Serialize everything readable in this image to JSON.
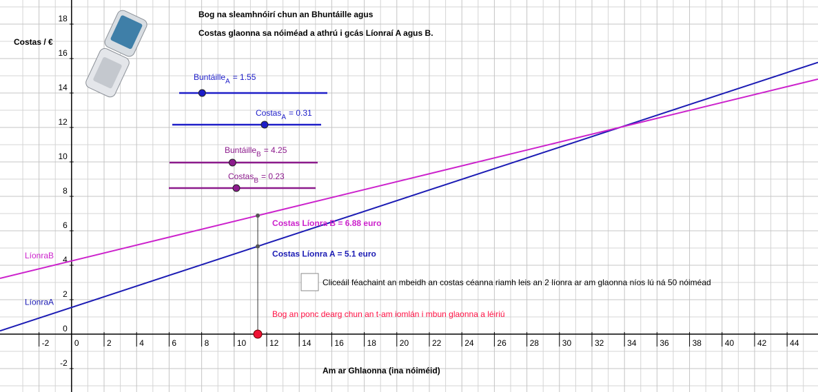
{
  "chart_data": {
    "type": "line",
    "title": "Bog na sleamhnóirí chun an Bhuntáille agus",
    "subtitle": "Costas glaonna sa nóiméad a athrú i gcás Líonraí A agus B.",
    "ylabel": "Costas / €",
    "xlabel": "Am ar Ghlaonna (ina nóiméid)",
    "xlim": [
      -4.4,
      45.9
    ],
    "ylim": [
      -3.36,
      19.4
    ],
    "xticks": [
      -2,
      0,
      2,
      4,
      6,
      8,
      10,
      12,
      14,
      16,
      18,
      20,
      22,
      24,
      26,
      28,
      30,
      32,
      34,
      36,
      38,
      40,
      42,
      44
    ],
    "yticks": [
      -2,
      0,
      2,
      4,
      6,
      8,
      10,
      12,
      14,
      16,
      18
    ],
    "xminor": [
      -3,
      -1,
      1,
      3,
      5,
      7,
      9,
      11,
      13,
      15,
      17,
      19,
      21,
      23,
      25,
      27,
      29,
      31,
      33,
      35,
      37,
      39,
      41,
      43,
      45
    ],
    "yminor": [
      -3,
      -1,
      1,
      3,
      5,
      7,
      9,
      11,
      13,
      15,
      17,
      19
    ],
    "grid": true,
    "series": [
      {
        "name": "LíonraA",
        "color": "#1c1cb4",
        "intercept": 1.55,
        "slope": 0.31
      },
      {
        "name": "LíonraB",
        "color": "#cc22cc",
        "intercept": 4.25,
        "slope": 0.23
      }
    ],
    "sliders": [
      {
        "name": "Buntáille",
        "subscript": "A",
        "label": "= 1.55",
        "value": 1.55,
        "min": 0,
        "max": 10,
        "color": "#1c1cc8"
      },
      {
        "name": "Costas",
        "subscript": "A",
        "label": "= 0.31",
        "value": 0.31,
        "min": 0,
        "max": 0.5,
        "color": "#1c1cc8"
      },
      {
        "name": "Buntáille",
        "subscript": "B",
        "label": "= 4.25",
        "value": 4.25,
        "min": 0,
        "max": 10,
        "color": "#8c1a8c"
      },
      {
        "name": "Costas",
        "subscript": "B",
        "label": "= 0.23",
        "value": 0.23,
        "min": 0,
        "max": 0.5,
        "color": "#8c1a8c"
      }
    ],
    "point": {
      "x": 11.45,
      "y": 0,
      "color": "#ee1133"
    },
    "annotations": [
      {
        "text": "Costas Líonra B = 6.88 euro",
        "y": 6.88,
        "color": "#cc22cc"
      },
      {
        "text": "Costas Líonra A = 5.1 euro",
        "y": 5.1,
        "color": "#1c1cb4"
      }
    ],
    "checkbox_text": "Cliceáil féachaint an mbeidh an costas céanna riamh leis an 2 líonra ar am glaonna níos lú ná 50 nóiméad",
    "instruction": "Bog an ponc dearg chun an t-am iomlán i mbun glaonna a léiriú"
  }
}
